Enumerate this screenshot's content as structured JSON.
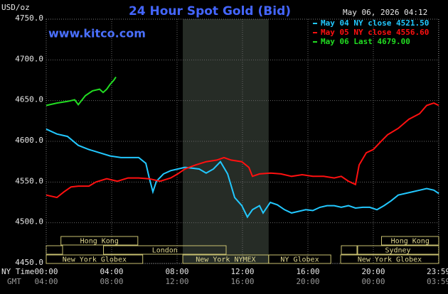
{
  "chart_data": {
    "type": "line",
    "title": "24 Hour Spot Gold (Bid)",
    "timestamp": "May 06, 2026 04:12",
    "watermark": "www.kitco.com",
    "y_label": "USD/oz",
    "x_label": "NY Time",
    "x2_label": "GMT",
    "legend": "upper right",
    "grid": true,
    "background": "#000000",
    "ylim": [
      4450,
      4750
    ],
    "yticks": [
      {
        "value": 4450,
        "label": "4450.0"
      },
      {
        "value": 4500,
        "label": "4500.0"
      },
      {
        "value": 4550,
        "label": "4550.0"
      },
      {
        "value": 4600,
        "label": "4600.0"
      },
      {
        "value": 4650,
        "label": "4650.0"
      },
      {
        "value": 4700,
        "label": "4700.0"
      },
      {
        "value": 4750,
        "label": "4750.0"
      }
    ],
    "xlim": [
      0,
      24
    ],
    "xticks": [
      {
        "value": 0,
        "label": "00:00"
      },
      {
        "value": 4,
        "label": "04:00"
      },
      {
        "value": 8,
        "label": "08:00"
      },
      {
        "value": 12,
        "label": "12:00"
      },
      {
        "value": 16,
        "label": "16:00"
      },
      {
        "value": 20,
        "label": "20:00"
      },
      {
        "value": 23.98,
        "label": "23:59"
      }
    ],
    "x2ticks": [
      {
        "value": 0,
        "label": "04:00"
      },
      {
        "value": 4,
        "label": "08:00"
      },
      {
        "value": 8,
        "label": "12:00"
      },
      {
        "value": 12,
        "label": "16:00"
      },
      {
        "value": 16,
        "label": "20:00"
      },
      {
        "value": 20,
        "label": "00:00"
      },
      {
        "value": 23.98,
        "label": "03:59"
      }
    ],
    "sessions": [
      {
        "label": "Hong Kong",
        "start": 0.9,
        "end": 5.6
      },
      {
        "label": "London",
        "start": 3.5,
        "end": 11.0
      },
      {
        "label": "New York Globex",
        "start": 0,
        "end": 5.9
      },
      {
        "label": "New York NYMEX",
        "start": 8.35,
        "end": 13.6
      },
      {
        "label": "NY Globex",
        "start": 13.6,
        "end": 17.4
      },
      {
        "label": "Hong Kong",
        "start": 20.5,
        "end": 24
      },
      {
        "label": "Sydney",
        "start": 19.0,
        "end": 24
      },
      {
        "label": "New York Globex",
        "start": 18.0,
        "end": 24
      }
    ],
    "series": [
      {
        "name": "May 04 NY close 4521.50",
        "color": "#22c8ff",
        "x": [
          0,
          0.65,
          1.3,
          1.96,
          2.61,
          3.26,
          3.91,
          4.57,
          5.22,
          5.65,
          6.09,
          6.3,
          6.52,
          6.74,
          7.17,
          7.61,
          8.04,
          8.48,
          8.91,
          9.35,
          9.78,
          10.22,
          10.65,
          11.09,
          11.52,
          11.96,
          12.3,
          12.61,
          13.04,
          13.26,
          13.7,
          14.13,
          14.57,
          15,
          15.43,
          15.87,
          16.3,
          16.74,
          17.17,
          17.61,
          18.04,
          18.48,
          18.91,
          19.35,
          19.78,
          20.22,
          20.65,
          21.09,
          21.52,
          21.96,
          22.39,
          22.83,
          23.26,
          23.7,
          24
        ],
        "values": [
          4615,
          4609,
          4606,
          4595,
          4590,
          4586,
          4582,
          4580,
          4580,
          4580,
          4573,
          4555,
          4538,
          4551,
          4560,
          4564,
          4566,
          4568,
          4567,
          4566,
          4561,
          4566,
          4575,
          4560,
          4531,
          4521,
          4507,
          4516,
          4521,
          4512,
          4525,
          4522,
          4516,
          4512,
          4514,
          4516,
          4515,
          4519,
          4521,
          4521,
          4519,
          4521,
          4518,
          4519,
          4519,
          4516,
          4521,
          4527,
          4534,
          4536,
          4538,
          4540,
          4542,
          4540,
          4536
        ]
      },
      {
        "name": "May 05 NY close 4556.60",
        "color": "#ff1010",
        "x": [
          0,
          0.65,
          1.09,
          1.52,
          1.96,
          2.61,
          3.04,
          3.7,
          4.35,
          5,
          5.65,
          6.3,
          6.96,
          7.61,
          8.04,
          8.48,
          9.13,
          9.78,
          10.43,
          10.87,
          11.3,
          11.96,
          12.39,
          12.61,
          13.04,
          13.7,
          14.35,
          15,
          15.65,
          16.3,
          16.96,
          17.61,
          18.04,
          18.48,
          18.91,
          19.13,
          19.57,
          20,
          20.43,
          20.87,
          21.52,
          22.17,
          22.83,
          23.26,
          23.7,
          24
        ],
        "values": [
          4534,
          4531,
          4538,
          4544,
          4545,
          4545,
          4550,
          4554,
          4551,
          4555,
          4555,
          4554,
          4551,
          4555,
          4560,
          4566,
          4571,
          4575,
          4577,
          4580,
          4577,
          4575,
          4568,
          4557,
          4560,
          4561,
          4560,
          4557,
          4559,
          4557,
          4557,
          4555,
          4557,
          4551,
          4547,
          4571,
          4586,
          4590,
          4599,
          4608,
          4616,
          4627,
          4634,
          4644,
          4647,
          4644
        ]
      },
      {
        "name": "May 06 Last 4679.00",
        "color": "#22dd22",
        "x": [
          0,
          0.65,
          1.3,
          1.74,
          1.96,
          2.39,
          2.83,
          3.26,
          3.48,
          3.7,
          3.91,
          4.13,
          4.26
        ],
        "values": [
          4644,
          4647,
          4649,
          4651,
          4645,
          4656,
          4662,
          4664,
          4660,
          4664,
          4670,
          4675,
          4679
        ]
      }
    ]
  }
}
